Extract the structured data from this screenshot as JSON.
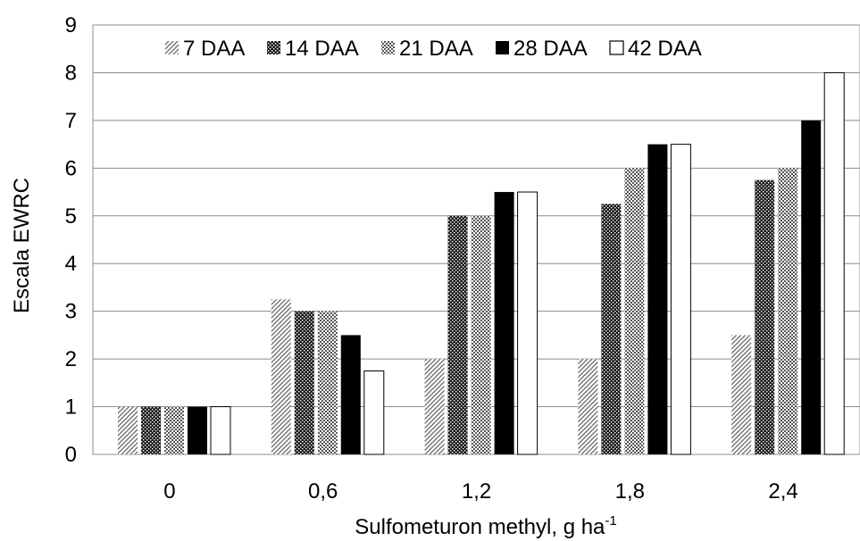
{
  "chart_data": {
    "type": "bar",
    "title": "",
    "xlabel": "Sulfometuron methyl, g ha",
    "xlabel_sup": "-1",
    "ylabel": "Escala EWRC",
    "ylim": [
      0,
      9
    ],
    "yticks": [
      "0",
      "1",
      "2",
      "3",
      "4",
      "5",
      "6",
      "7",
      "8",
      "9"
    ],
    "grid": "horizontal",
    "legend_position": "top",
    "categories": [
      "0",
      "0,6",
      "1,2",
      "1,8",
      "2,4"
    ],
    "series": [
      {
        "name": "7 DAA",
        "pattern": "diagonal-hatch",
        "values": [
          1,
          3.25,
          2,
          2,
          2.5
        ]
      },
      {
        "name": "14 DAA",
        "pattern": "dense-dots",
        "values": [
          1,
          3,
          5,
          5.25,
          5.75
        ]
      },
      {
        "name": "21 DAA",
        "pattern": "checker",
        "values": [
          1,
          3,
          5,
          6,
          6
        ]
      },
      {
        "name": "28 DAA",
        "pattern": "solid-black",
        "values": [
          1,
          2.5,
          5.5,
          6.5,
          7
        ]
      },
      {
        "name": "42 DAA",
        "pattern": "white",
        "values": [
          1,
          1.75,
          5.5,
          6.5,
          8
        ]
      }
    ]
  }
}
